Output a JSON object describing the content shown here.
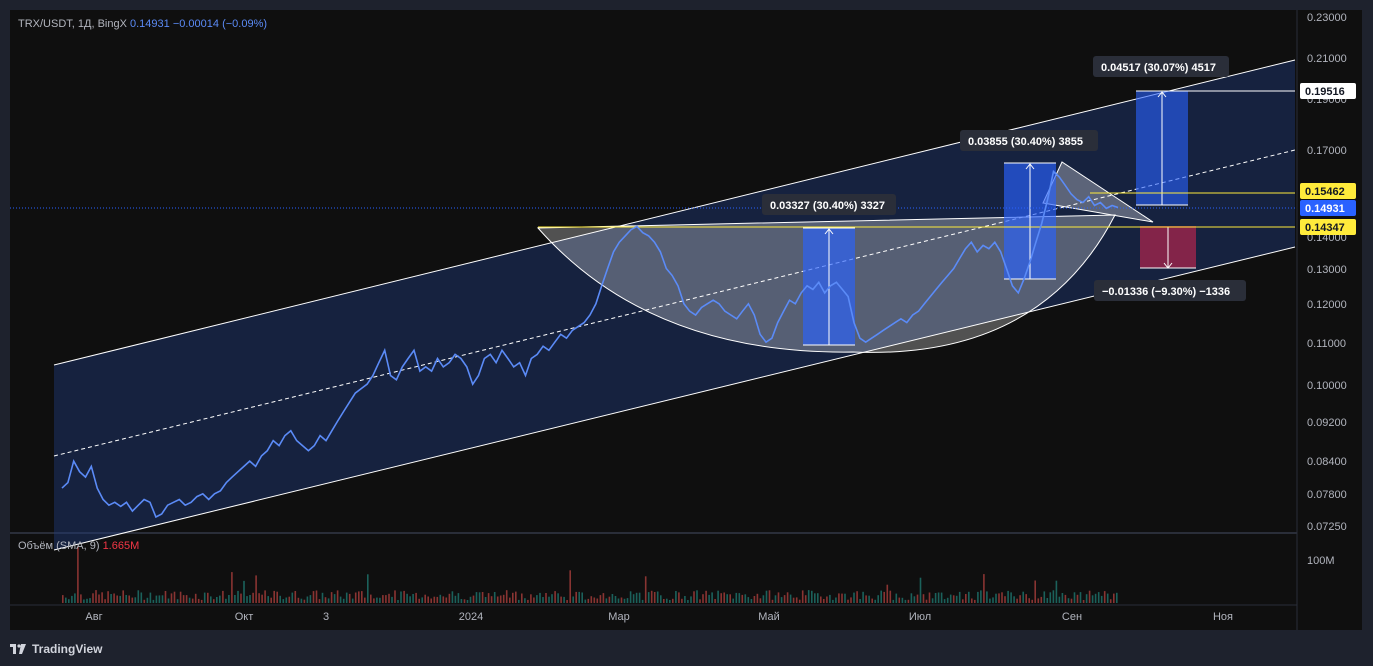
{
  "header": {
    "symbol": "TRX/USDT, 1Д, BingX",
    "price": "0.14931",
    "change": "−0.00014 (−0.09%)"
  },
  "volume_legend": {
    "label": "Объём (SMA, 9)",
    "value": "1.665M"
  },
  "footer": {
    "brand": "TradingView"
  },
  "colors": {
    "price_line": "#5b8bf7",
    "channel_fill": "#1f3a7a",
    "up_box": "#2962ff",
    "down_box": "#b2254f",
    "highlight_tag": "#ffeb3b",
    "current_tag": "#2962ff",
    "white_tag": "#ffffff",
    "vol_up": "#26a69a",
    "vol_down": "#ef5350"
  },
  "chart_data": {
    "type": "line",
    "title": "TRX/USDT, 1Д, BingX",
    "y_axis_scale": "log",
    "y_ticks": [
      "0.23000",
      "0.21000",
      "0.19000",
      "0.17000",
      "0.14000",
      "0.13000",
      "0.12000",
      "0.11000",
      "0.10000",
      "0.09200",
      "0.08400",
      "0.07800",
      "0.07250"
    ],
    "x_ticks": [
      "Авг",
      "Окт",
      "3",
      "2024",
      "Мар",
      "Май",
      "Июл",
      "Сен",
      "Ноя"
    ],
    "volume_ticks": [
      "100M"
    ],
    "price_tags": [
      {
        "value": "0.19516",
        "style": "white"
      },
      {
        "value": "0.15462",
        "style": "yellow"
      },
      {
        "value": "0.14931",
        "style": "blue"
      },
      {
        "value": "0.14347",
        "style": "yellow"
      }
    ],
    "measurements": [
      {
        "label": "0.03327 (30.40%) 3327",
        "direction": "up"
      },
      {
        "label": "0.03855 (30.40%) 3855",
        "direction": "up"
      },
      {
        "label": "0.04517 (30.07%) 4517",
        "direction": "up"
      },
      {
        "label": "−0.01336 (−9.30%) −1336",
        "direction": "down"
      }
    ],
    "series": [
      {
        "values": [
          0.079,
          0.08,
          0.084,
          0.082,
          0.081,
          0.083,
          0.079,
          0.077,
          0.076,
          0.0765,
          0.0758,
          0.0765,
          0.075,
          0.076,
          0.077,
          0.0765,
          0.074,
          0.0745,
          0.076,
          0.0765,
          0.077,
          0.076,
          0.0765,
          0.0775,
          0.078,
          0.077,
          0.078,
          0.0785,
          0.08,
          0.081,
          0.082,
          0.083,
          0.084,
          0.083,
          0.085,
          0.086,
          0.088,
          0.087,
          0.089,
          0.09,
          0.088,
          0.087,
          0.086,
          0.087,
          0.089,
          0.088,
          0.09,
          0.092,
          0.094,
          0.096,
          0.098,
          0.099,
          0.1,
          0.102,
          0.105,
          0.108,
          0.102,
          0.101,
          0.104,
          0.106,
          0.108,
          0.103,
          0.104,
          0.103,
          0.106,
          0.104,
          0.105,
          0.107,
          0.106,
          0.104,
          0.1,
          0.102,
          0.106,
          0.107,
          0.105,
          0.108,
          0.106,
          0.104,
          0.105,
          0.102,
          0.106,
          0.107,
          0.109,
          0.108,
          0.11,
          0.112,
          0.111,
          0.113,
          0.114,
          0.115,
          0.117,
          0.12,
          0.125,
          0.13,
          0.135,
          0.138,
          0.14,
          0.142,
          0.143,
          0.141,
          0.14,
          0.138,
          0.135,
          0.13,
          0.128,
          0.125,
          0.12,
          0.118,
          0.117,
          0.119,
          0.12,
          0.121,
          0.12,
          0.118,
          0.117,
          0.116,
          0.118,
          0.12,
          0.117,
          0.112,
          0.11,
          0.111,
          0.115,
          0.118,
          0.121,
          0.12,
          0.123,
          0.125,
          0.124,
          0.126,
          0.123,
          0.125,
          0.126,
          0.124,
          0.122,
          0.115,
          0.111,
          0.11,
          0.111,
          0.112,
          0.113,
          0.114,
          0.115,
          0.116,
          0.115,
          0.117,
          0.118,
          0.12,
          0.122,
          0.124,
          0.126,
          0.128,
          0.13,
          0.133,
          0.136,
          0.138,
          0.135,
          0.137,
          0.136,
          0.138,
          0.135,
          0.13,
          0.125,
          0.123,
          0.127,
          0.132,
          0.138,
          0.144,
          0.152,
          0.162,
          0.16,
          0.157,
          0.154,
          0.152,
          0.151,
          0.153,
          0.15,
          0.151,
          0.149,
          0.15,
          0.1493
        ]
      }
    ]
  }
}
